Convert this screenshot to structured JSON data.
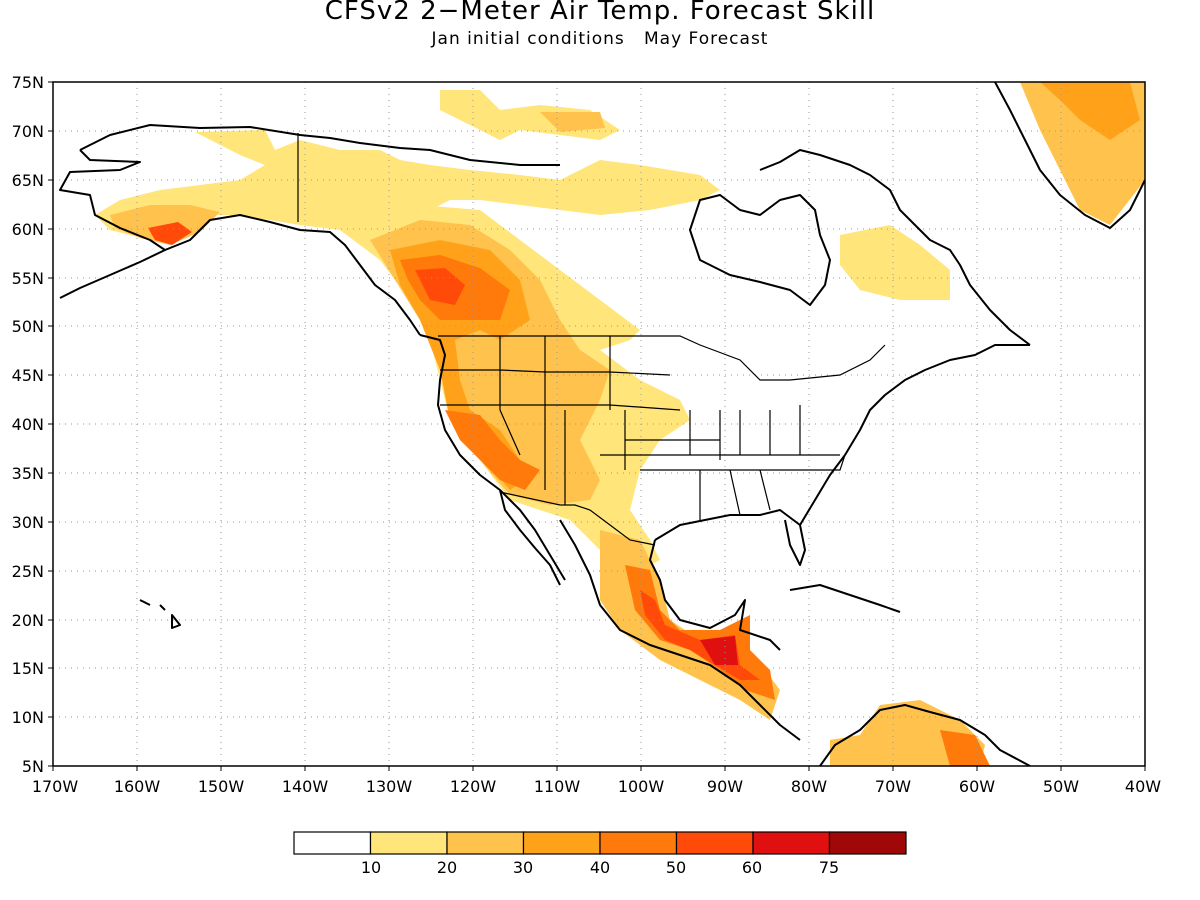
{
  "title": "CFSv2 2−Meter Air Temp. Forecast Skill",
  "subtitle": {
    "part1": "Jan initial conditions",
    "part2": "May Forecast"
  },
  "map": {
    "lon_range": [
      -170,
      -40
    ],
    "lat_range": [
      5,
      75
    ],
    "lat_ticks": [
      "75N",
      "70N",
      "65N",
      "60N",
      "55N",
      "50N",
      "45N",
      "40N",
      "35N",
      "30N",
      "25N",
      "20N",
      "15N",
      "10N",
      "5N"
    ],
    "lon_ticks": [
      "170W",
      "160W",
      "150W",
      "140W",
      "130W",
      "120W",
      "110W",
      "100W",
      "90W",
      "80W",
      "70W",
      "60W",
      "50W",
      "40W"
    ],
    "grid": "dotted"
  },
  "colorbar": {
    "labels": [
      "10",
      "20",
      "30",
      "40",
      "50",
      "60",
      "75"
    ],
    "colors": [
      "#ffffff",
      "#ffe57a",
      "#ffc34d",
      "#ffa21a",
      "#ff7a0a",
      "#ff4a0a",
      "#e01010",
      "#a00808"
    ]
  }
}
